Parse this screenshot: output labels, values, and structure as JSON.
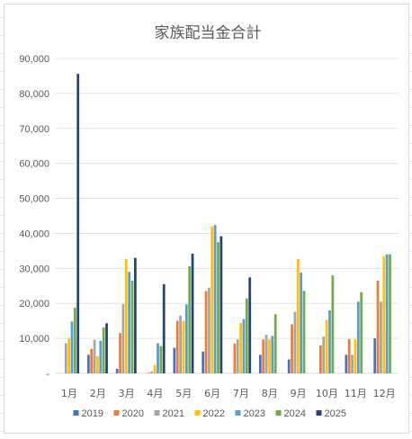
{
  "chart_data": {
    "type": "bar",
    "title": "家族配当金合計",
    "xlabel": "",
    "ylabel": "",
    "ylim": [
      0,
      90000
    ],
    "y_ticks": [
      "-",
      "10,000",
      "20,000",
      "30,000",
      "40,000",
      "50,000",
      "60,000",
      "70,000",
      "80,000",
      "90,000"
    ],
    "grid": true,
    "legend_position": "bottom",
    "categories": [
      "1月",
      "2月",
      "3月",
      "4月",
      "5月",
      "6月",
      "7月",
      "8月",
      "9月",
      "10月",
      "11月",
      "12月"
    ],
    "series": [
      {
        "name": "2019",
        "color": "#4472c4",
        "values": [
          0,
          5300,
          1300,
          0,
          7300,
          6200,
          0,
          5300,
          4000,
          0,
          5300,
          10000
        ]
      },
      {
        "name": "2020",
        "color": "#ed7d31",
        "values": [
          0,
          7000,
          11500,
          200,
          15000,
          23500,
          8500,
          9700,
          14000,
          8000,
          9800,
          26500
        ]
      },
      {
        "name": "2021",
        "color": "#a5a5a5",
        "values": [
          8600,
          9600,
          19800,
          500,
          16500,
          24500,
          9700,
          11000,
          17600,
          10500,
          5300,
          20500
        ]
      },
      {
        "name": "2022",
        "color": "#ffc000",
        "values": [
          9900,
          4900,
          32700,
          2400,
          15000,
          42000,
          14400,
          9700,
          32700,
          15300,
          9700,
          33500
        ]
      },
      {
        "name": "2023",
        "color": "#5b9bd5",
        "values": [
          14800,
          9300,
          29000,
          8600,
          19700,
          42400,
          15500,
          10700,
          28800,
          18000,
          20500,
          34000
        ]
      },
      {
        "name": "2024",
        "color": "#70ad47",
        "values": [
          18800,
          13100,
          26500,
          7800,
          30600,
          37500,
          21400,
          16900,
          23600,
          28000,
          23200,
          34000
        ]
      },
      {
        "name": "2025",
        "color": "#264478",
        "values": [
          85600,
          14300,
          33000,
          25500,
          34200,
          39200,
          27400,
          0,
          0,
          0,
          0,
          0
        ]
      }
    ]
  }
}
